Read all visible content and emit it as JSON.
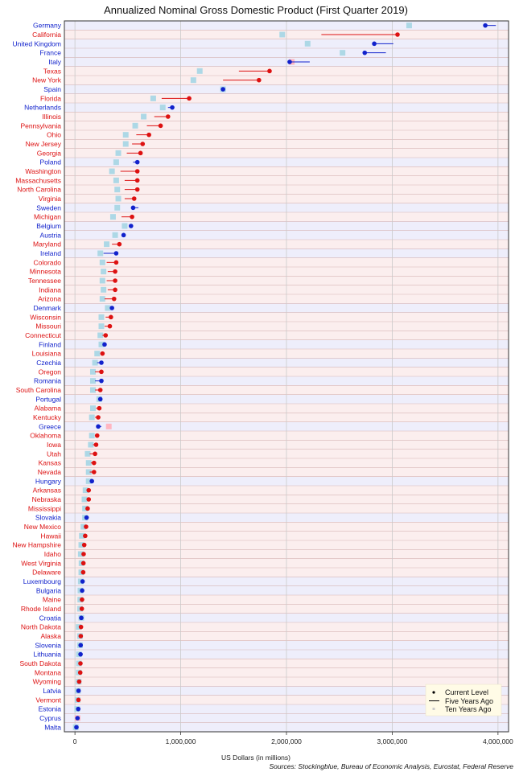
{
  "chart_data": {
    "type": "dot-range",
    "title": "Annualized Nominal Gross Domestic Product (First Quarter 2019)",
    "xlabel": "US Dollars (in millions)",
    "source": "Sources: Stockingblue, Bureau of Economic Analysis, Eurostat, Federal Reserve",
    "xlim": [
      -100000,
      4100000
    ],
    "x_ticks": [
      0,
      1000000,
      2000000,
      3000000,
      4000000
    ],
    "x_tick_labels": [
      "0",
      "1,000,000",
      "2,000,000",
      "3,000,000",
      "4,000,000"
    ],
    "grid": true,
    "legend_position": "bottom-right",
    "legend": {
      "current": "Current Level",
      "five": "Five Years Ago",
      "ten": "Ten Years Ago"
    },
    "colors": {
      "us_state": "#dd1111",
      "country": "#1122cc",
      "row_us": "#fbeeee",
      "row_country": "#eeeefb",
      "grid": "#d6b5b5",
      "ten_up": "#add8e6",
      "ten_down": "#ffb6c1",
      "legend_bg": "#fffbe6"
    },
    "rows": [
      {
        "label": "Germany",
        "group": "country",
        "current": 3880000,
        "five": 3980000,
        "ten": 3160000
      },
      {
        "label": "California",
        "group": "state",
        "current": 3050000,
        "five": 2330000,
        "ten": 1960000
      },
      {
        "label": "United Kingdom",
        "group": "country",
        "current": 2830000,
        "five": 3010000,
        "ten": 2200000
      },
      {
        "label": "France",
        "group": "country",
        "current": 2740000,
        "five": 2940000,
        "ten": 2530000
      },
      {
        "label": "Italy",
        "group": "country",
        "current": 2030000,
        "five": 2220000,
        "ten": 2050000
      },
      {
        "label": "Texas",
        "group": "state",
        "current": 1840000,
        "five": 1550000,
        "ten": 1180000
      },
      {
        "label": "New York",
        "group": "state",
        "current": 1740000,
        "five": 1400000,
        "ten": 1120000
      },
      {
        "label": "Spain",
        "group": "country",
        "current": 1400000,
        "five": 1400000,
        "ten": 1400000
      },
      {
        "label": "Florida",
        "group": "state",
        "current": 1080000,
        "five": 820000,
        "ten": 740000
      },
      {
        "label": "Netherlands",
        "group": "country",
        "current": 920000,
        "five": 880000,
        "ten": 830000
      },
      {
        "label": "Illinois",
        "group": "state",
        "current": 880000,
        "five": 750000,
        "ten": 650000
      },
      {
        "label": "Pennsylvania",
        "group": "state",
        "current": 810000,
        "five": 680000,
        "ten": 570000
      },
      {
        "label": "Ohio",
        "group": "state",
        "current": 700000,
        "five": 580000,
        "ten": 480000
      },
      {
        "label": "New Jersey",
        "group": "state",
        "current": 640000,
        "five": 540000,
        "ten": 480000
      },
      {
        "label": "Georgia",
        "group": "state",
        "current": 620000,
        "five": 490000,
        "ten": 410000
      },
      {
        "label": "Poland",
        "group": "country",
        "current": 590000,
        "five": 550000,
        "ten": 390000
      },
      {
        "label": "Washington",
        "group": "state",
        "current": 590000,
        "five": 430000,
        "ten": 350000
      },
      {
        "label": "Massachusetts",
        "group": "state",
        "current": 590000,
        "five": 470000,
        "ten": 390000
      },
      {
        "label": "North Carolina",
        "group": "state",
        "current": 590000,
        "five": 470000,
        "ten": 400000
      },
      {
        "label": "Virginia",
        "group": "state",
        "current": 560000,
        "five": 470000,
        "ten": 410000
      },
      {
        "label": "Sweden",
        "group": "country",
        "current": 550000,
        "five": 600000,
        "ten": 400000
      },
      {
        "label": "Michigan",
        "group": "state",
        "current": 540000,
        "five": 440000,
        "ten": 360000
      },
      {
        "label": "Belgium",
        "group": "country",
        "current": 530000,
        "five": 540000,
        "ten": 470000
      },
      {
        "label": "Austria",
        "group": "country",
        "current": 460000,
        "five": 450000,
        "ten": 380000
      },
      {
        "label": "Maryland",
        "group": "state",
        "current": 420000,
        "five": 350000,
        "ten": 300000
      },
      {
        "label": "Ireland",
        "group": "country",
        "current": 390000,
        "five": 270000,
        "ten": 240000
      },
      {
        "label": "Colorado",
        "group": "state",
        "current": 390000,
        "five": 300000,
        "ten": 260000
      },
      {
        "label": "Minnesota",
        "group": "state",
        "current": 380000,
        "five": 310000,
        "ten": 270000
      },
      {
        "label": "Tennessee",
        "group": "state",
        "current": 380000,
        "five": 300000,
        "ten": 260000
      },
      {
        "label": "Indiana",
        "group": "state",
        "current": 380000,
        "five": 310000,
        "ten": 270000
      },
      {
        "label": "Arizona",
        "group": "state",
        "current": 370000,
        "five": 280000,
        "ten": 260000
      },
      {
        "label": "Denmark",
        "group": "country",
        "current": 350000,
        "five": 340000,
        "ten": 310000
      },
      {
        "label": "Wisconsin",
        "group": "state",
        "current": 340000,
        "five": 290000,
        "ten": 250000
      },
      {
        "label": "Missouri",
        "group": "state",
        "current": 330000,
        "five": 280000,
        "ten": 250000
      },
      {
        "label": "Connecticut",
        "group": "state",
        "current": 290000,
        "five": 260000,
        "ten": 240000
      },
      {
        "label": "Finland",
        "group": "country",
        "current": 280000,
        "five": 270000,
        "ten": 250000
      },
      {
        "label": "Louisiana",
        "group": "state",
        "current": 260000,
        "five": 240000,
        "ten": 210000
      },
      {
        "label": "Czechia",
        "group": "country",
        "current": 250000,
        "five": 210000,
        "ten": 190000
      },
      {
        "label": "Oregon",
        "group": "state",
        "current": 250000,
        "five": 190000,
        "ten": 170000
      },
      {
        "label": "Romania",
        "group": "country",
        "current": 250000,
        "five": 190000,
        "ten": 170000
      },
      {
        "label": "South Carolina",
        "group": "state",
        "current": 240000,
        "five": 190000,
        "ten": 170000
      },
      {
        "label": "Portugal",
        "group": "country",
        "current": 240000,
        "five": 230000,
        "ten": 230000
      },
      {
        "label": "Alabama",
        "group": "state",
        "current": 230000,
        "five": 200000,
        "ten": 170000
      },
      {
        "label": "Kentucky",
        "group": "state",
        "current": 220000,
        "five": 190000,
        "ten": 160000
      },
      {
        "label": "Greece",
        "group": "country",
        "current": 220000,
        "five": 250000,
        "ten": 320000
      },
      {
        "label": "Oklahoma",
        "group": "state",
        "current": 210000,
        "five": 190000,
        "ten": 160000
      },
      {
        "label": "Iowa",
        "group": "state",
        "current": 200000,
        "five": 170000,
        "ten": 150000
      },
      {
        "label": "Utah",
        "group": "state",
        "current": 190000,
        "five": 140000,
        "ten": 120000
      },
      {
        "label": "Kansas",
        "group": "state",
        "current": 180000,
        "five": 150000,
        "ten": 130000
      },
      {
        "label": "Nevada",
        "group": "state",
        "current": 180000,
        "five": 140000,
        "ten": 130000
      },
      {
        "label": "Hungary",
        "group": "country",
        "current": 160000,
        "five": 140000,
        "ten": 130000
      },
      {
        "label": "Arkansas",
        "group": "state",
        "current": 130000,
        "five": 120000,
        "ten": 100000
      },
      {
        "label": "Nebraska",
        "group": "state",
        "current": 130000,
        "five": 110000,
        "ten": 90000
      },
      {
        "label": "Mississippi",
        "group": "state",
        "current": 120000,
        "five": 110000,
        "ten": 95000
      },
      {
        "label": "Slovakia",
        "group": "country",
        "current": 110000,
        "five": 100000,
        "ten": 95000
      },
      {
        "label": "New Mexico",
        "group": "state",
        "current": 105000,
        "five": 93000,
        "ten": 80000
      },
      {
        "label": "Hawaii",
        "group": "state",
        "current": 97000,
        "five": 78000,
        "ten": 65000
      },
      {
        "label": "New Hampshire",
        "group": "state",
        "current": 88000,
        "five": 72000,
        "ten": 60000
      },
      {
        "label": "Idaho",
        "group": "state",
        "current": 82000,
        "five": 65000,
        "ten": 55000
      },
      {
        "label": "West Virginia",
        "group": "state",
        "current": 80000,
        "five": 75000,
        "ten": 62000
      },
      {
        "label": "Delaware",
        "group": "state",
        "current": 78000,
        "five": 68000,
        "ten": 60000
      },
      {
        "label": "Luxembourg",
        "group": "country",
        "current": 72000,
        "five": 65000,
        "ten": 55000
      },
      {
        "label": "Bulgaria",
        "group": "country",
        "current": 68000,
        "five": 57000,
        "ten": 52000
      },
      {
        "label": "Maine",
        "group": "state",
        "current": 67000,
        "five": 56000,
        "ten": 50000
      },
      {
        "label": "Rhode Island",
        "group": "state",
        "current": 65000,
        "five": 56000,
        "ten": 48000
      },
      {
        "label": "Croatia",
        "group": "country",
        "current": 60000,
        "five": 57000,
        "ten": 60000
      },
      {
        "label": "North Dakota",
        "group": "state",
        "current": 57000,
        "five": 56000,
        "ten": 35000
      },
      {
        "label": "Alaska",
        "group": "state",
        "current": 55000,
        "five": 57000,
        "ten": 48000
      },
      {
        "label": "Slovenia",
        "group": "country",
        "current": 54000,
        "five": 47000,
        "ten": 48000
      },
      {
        "label": "Lithuania",
        "group": "country",
        "current": 53000,
        "five": 45000,
        "ten": 38000
      },
      {
        "label": "South Dakota",
        "group": "state",
        "current": 52000,
        "five": 45000,
        "ten": 38000
      },
      {
        "label": "Montana",
        "group": "state",
        "current": 50000,
        "five": 44000,
        "ten": 36000
      },
      {
        "label": "Wyoming",
        "group": "state",
        "current": 40000,
        "five": 40000,
        "ten": 35000
      },
      {
        "label": "Latvia",
        "group": "country",
        "current": 34000,
        "five": 30000,
        "ten": 28000
      },
      {
        "label": "Vermont",
        "group": "state",
        "current": 33000,
        "five": 29000,
        "ten": 25000
      },
      {
        "label": "Estonia",
        "group": "country",
        "current": 31000,
        "five": 24000,
        "ten": 21000
      },
      {
        "label": "Cyprus",
        "group": "country",
        "current": 24000,
        "five": 22000,
        "ten": 25000
      },
      {
        "label": "Malta",
        "group": "country",
        "current": 14000,
        "five": 10000,
        "ten": 8000
      }
    ]
  }
}
